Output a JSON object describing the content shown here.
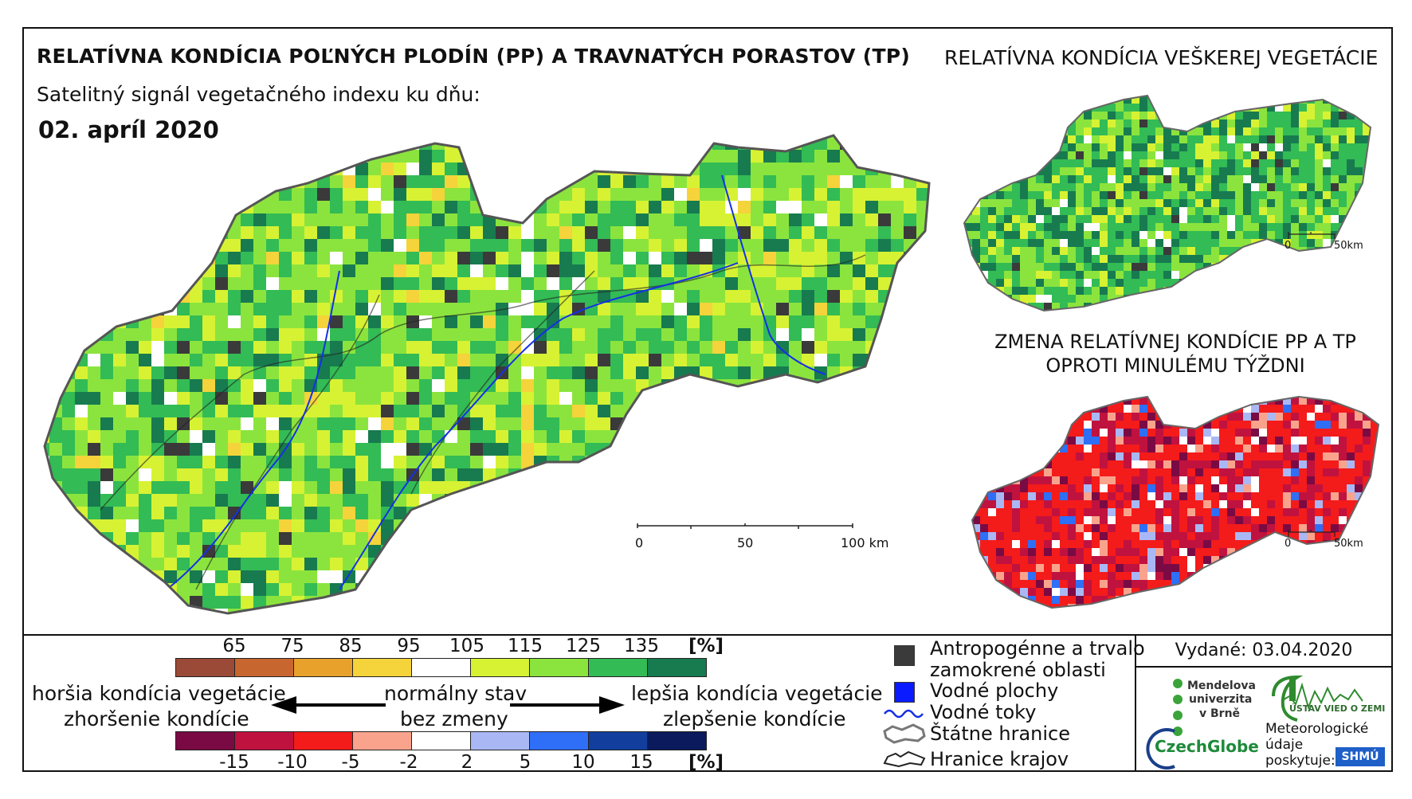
{
  "header": {
    "title": "RELATÍVNA KONDÍCIA POĽNÝCH PLODÍN (PP) A TRAVNATÝCH PORASTOV (TP)",
    "subtitle": "Satelitný signál vegetačného indexu ku dňu:",
    "date": "02. apríl 2020"
  },
  "inset_top": {
    "title": "RELATÍVNA KONDÍCIA VEŠKEREJ VEGETÁCIE",
    "scale_zero": "0",
    "scale_end": "50km"
  },
  "inset_bottom": {
    "title_line1": "ZMENA RELATÍVNEJ KONDÍCIE PP A TP",
    "title_line2": "OPROTI MINULÉMU TÝŽDNI",
    "scale_zero": "0",
    "scale_end": "50km"
  },
  "main_scale": {
    "zero": "0",
    "mid": "50",
    "end": "100 km"
  },
  "legend_condition": {
    "ticks": [
      "65",
      "75",
      "85",
      "95",
      "105",
      "115",
      "125",
      "135"
    ],
    "unit": "[%]",
    "colors": [
      "#9b4a37",
      "#c8662f",
      "#e8a12a",
      "#f5d33a",
      "#ffffff",
      "#d7f233",
      "#8be43d",
      "#33bb55",
      "#177b4f"
    ]
  },
  "legend_change": {
    "ticks": [
      "-15",
      "-10",
      "-5",
      "-2",
      "2",
      "5",
      "10",
      "15"
    ],
    "unit": "[%]",
    "colors": [
      "#7a0a43",
      "#c0123f",
      "#f41b1b",
      "#f9a38d",
      "#ffffff",
      "#a9b8f4",
      "#2f6ef6",
      "#123f9e",
      "#0b1a5c"
    ]
  },
  "arrows": {
    "left_line1": "horšia kondícia vegetácie",
    "left_line2": "zhoršenie kondície",
    "center_line1": "normálny stav",
    "center_line2": "bez zmeny",
    "right_line1": "lepšia kondícia vegetácie",
    "right_line2": "zlepšenie kondície"
  },
  "map_legend": {
    "anthropogenic_line1": "Antropogénne a trvalo",
    "anthropogenic_line2": "zamokrené oblasti",
    "water_areas": "Vodné plochy",
    "water_streams": "Vodné toky",
    "state_border": "Štátne hranice",
    "region_border": "Hranice krajov",
    "colors": {
      "anthropogenic": "#3a3a3a",
      "water": "#0a1cff",
      "stream": "#1530e6"
    }
  },
  "issued": "Vydané: 03.04.2020",
  "logos": {
    "mendel_line1": "Mendelova",
    "mendel_line2": "univerzita",
    "mendel_line3": "v Brně",
    "czechglobe": "CzechGlobe",
    "uvz": "ÚSTAV VIED O ZEMI",
    "meteo_line1": "Meteorologické",
    "meteo_line2": "údaje",
    "meteo_line3": "poskytuje:",
    "shmu": "SHMÚ"
  }
}
